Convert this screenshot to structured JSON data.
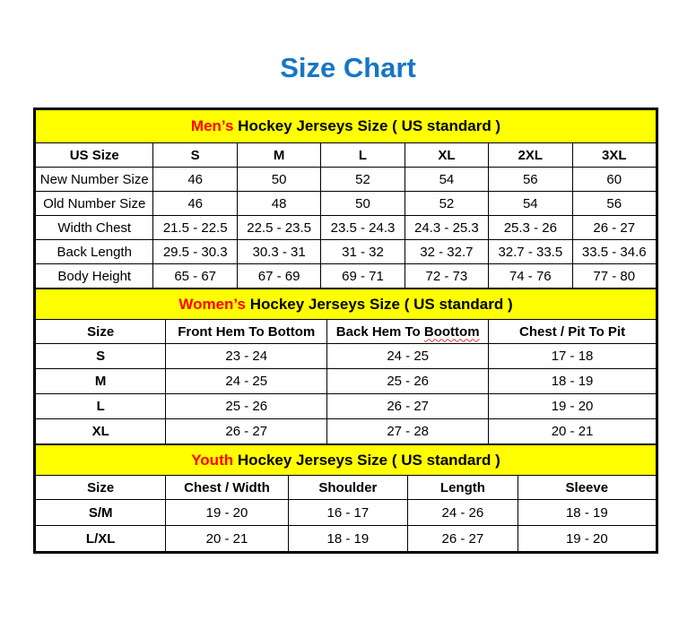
{
  "title": {
    "text": "Size Chart"
  },
  "colors": {
    "title_blue": "#1576c6",
    "band_yellow": "#ffff00",
    "accent_red": "#ff0000",
    "border_black": "#000000",
    "squiggle_red": "#e03c31"
  },
  "sections": [
    {
      "id": "mens",
      "band": {
        "highlight": "Men’s",
        "rest": " Hockey Jerseys Size ( US standard )"
      },
      "col_widths": [
        "19%",
        "13.5%",
        "13.5%",
        "13.5%",
        "13.5%",
        "13.5%",
        "13.5%"
      ],
      "columns": [
        "US Size",
        "S",
        "M",
        "L",
        "XL",
        "2XL",
        "3XL"
      ],
      "rows": [
        {
          "label": "New Number Size",
          "values": [
            "46",
            "50",
            "52",
            "54",
            "56",
            "60"
          ]
        },
        {
          "label": "Old Number Size",
          "values": [
            "46",
            "48",
            "50",
            "52",
            "54",
            "56"
          ]
        },
        {
          "label": "Width Chest",
          "values": [
            "21.5 - 22.5",
            "22.5 - 23.5",
            "23.5 - 24.3",
            "24.3 - 25.3",
            "25.3 - 26",
            "26 - 27"
          ]
        },
        {
          "label": "Back Length",
          "values": [
            "29.5 - 30.3",
            "30.3 - 31",
            "31 - 32",
            "32 - 32.7",
            "32.7 - 33.5",
            "33.5 - 34.6"
          ]
        },
        {
          "label": "Body Height",
          "values": [
            "65 - 67",
            "67 - 69",
            "69 - 71",
            "72 - 73",
            "74 - 76",
            "77 - 80"
          ]
        }
      ]
    },
    {
      "id": "womens",
      "band": {
        "highlight": "Women’s",
        "rest": " Hockey Jerseys Size ( US standard )"
      },
      "col_widths": [
        "21%",
        "26%",
        "26%",
        "27%"
      ],
      "columns": [
        "Size",
        "Front Hem To Bottom",
        {
          "prefix": "Back Hem To ",
          "misspelled": "Boottom"
        },
        "Chest / Pit To Pit"
      ],
      "rows": [
        {
          "label": "S",
          "values": [
            "23 - 24",
            "24 - 25",
            "17 - 18"
          ]
        },
        {
          "label": "M",
          "values": [
            "24 - 25",
            "25 - 26",
            "18 - 19"
          ]
        },
        {
          "label": "L",
          "values": [
            "25 - 26",
            "26 - 27",
            "19 - 20"
          ]
        },
        {
          "label": "XL",
          "values": [
            "26 - 27",
            "27 - 28",
            "20 - 21"
          ]
        }
      ]
    },
    {
      "id": "youth",
      "band": {
        "highlight": "Youth",
        "rest": " Hockey Jerseys Size ( US standard )"
      },
      "col_widths": [
        "21%",
        "19.7%",
        "19.3%",
        "17.7%",
        "22.3%"
      ],
      "columns": [
        "Size",
        "Chest / Width",
        "Shoulder",
        "Length",
        "Sleeve"
      ],
      "rows": [
        {
          "label": "S/M",
          "values": [
            "19 - 20",
            "16 - 17",
            "24 - 26",
            "18 - 19"
          ]
        },
        {
          "label": "L/XL",
          "values": [
            "20 - 21",
            "18 - 19",
            "26 - 27",
            "19 - 20"
          ]
        }
      ]
    }
  ]
}
